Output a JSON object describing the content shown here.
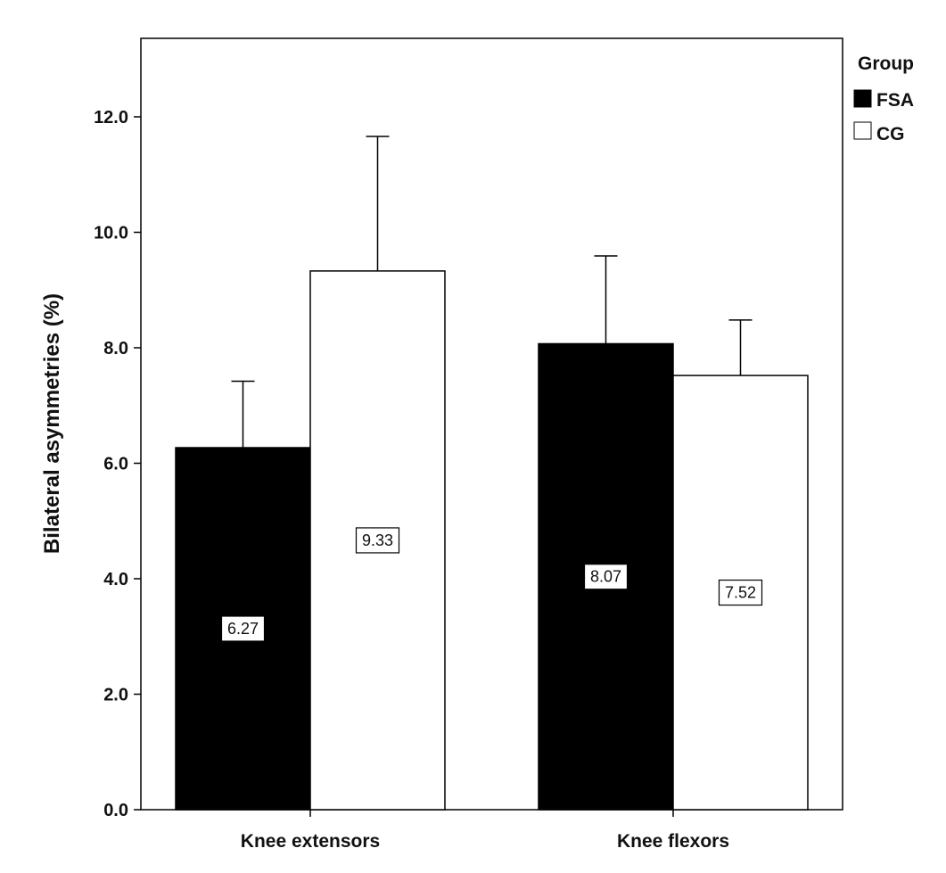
{
  "chart_data": {
    "type": "bar",
    "categories": [
      "Knee extensors",
      "Knee flexors"
    ],
    "series": [
      {
        "name": "FSA",
        "color": "#000000",
        "values": [
          6.27,
          8.07
        ],
        "error_upper": [
          7.42,
          9.59
        ]
      },
      {
        "name": "CG",
        "color": "#ffffff",
        "values": [
          9.33,
          7.52
        ],
        "error_upper": [
          11.66,
          8.48
        ]
      }
    ],
    "data_labels": [
      [
        "6.27",
        "8.07"
      ],
      [
        "9.33",
        "7.52"
      ]
    ],
    "ylabel": "Bilateral asymmetries (%)",
    "ylim": [
      0,
      13.2
    ],
    "yticks": [
      "0.0",
      "2.0",
      "4.0",
      "6.0",
      "8.0",
      "10.0",
      "12.0"
    ],
    "ytick_values": [
      0,
      2,
      4,
      6,
      8,
      10,
      12
    ],
    "legend": {
      "title": "Group",
      "placement": "right",
      "entries": [
        "FSA",
        "CG"
      ]
    },
    "grid": false
  }
}
